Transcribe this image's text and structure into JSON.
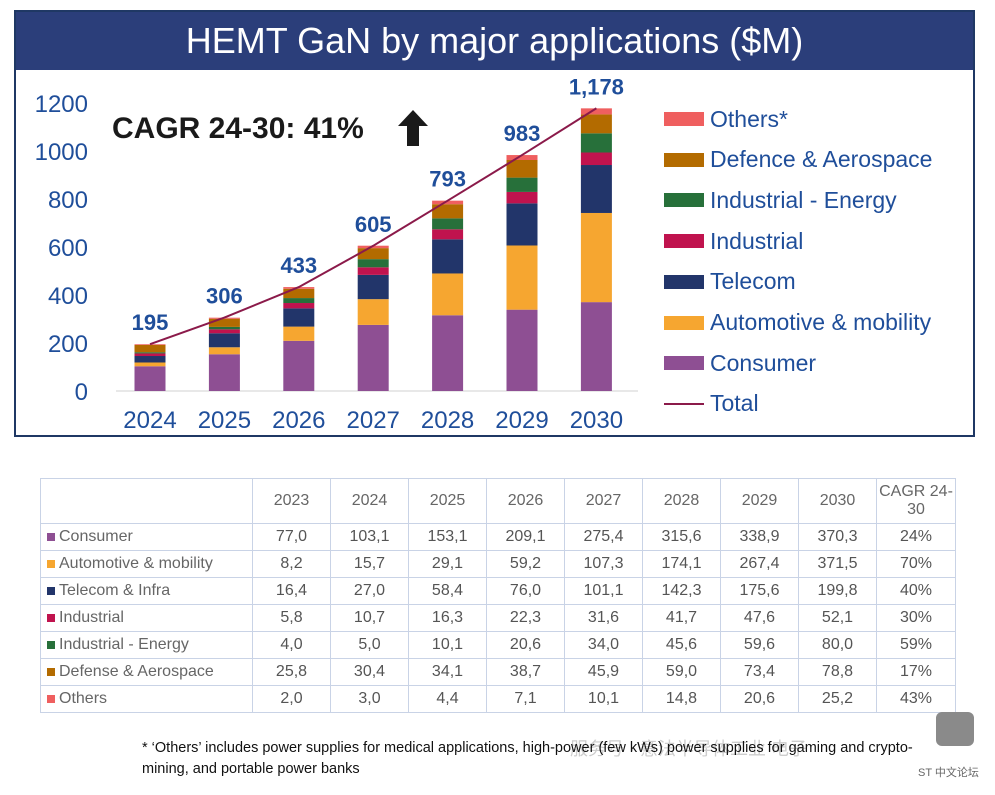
{
  "chart_data": {
    "type": "bar",
    "stacked": true,
    "title": "HEMT GaN by major applications ($M)",
    "categories": [
      "2024",
      "2025",
      "2026",
      "2027",
      "2028",
      "2029",
      "2030"
    ],
    "series": [
      {
        "name": "Consumer",
        "color": "#8e4f93",
        "values": [
          103.1,
          153.1,
          209.1,
          275.4,
          315.6,
          338.9,
          370.3
        ]
      },
      {
        "name": "Automotive & mobility",
        "color": "#f6a630",
        "values": [
          15.7,
          29.1,
          59.2,
          107.3,
          174.1,
          267.4,
          371.5
        ]
      },
      {
        "name": "Telecom",
        "color": "#22356a",
        "values": [
          27.0,
          58.4,
          76.0,
          101.1,
          142.3,
          175.6,
          199.8
        ]
      },
      {
        "name": "Industrial",
        "color": "#c0134e",
        "values": [
          10.7,
          16.3,
          22.3,
          31.6,
          41.7,
          47.6,
          52.1
        ]
      },
      {
        "name": "Industrial - Energy",
        "color": "#27703a",
        "values": [
          5.0,
          10.1,
          20.6,
          34.0,
          45.6,
          59.6,
          80.0
        ]
      },
      {
        "name": "Defence & Aerospace",
        "color": "#b36b00",
        "values": [
          30.4,
          34.1,
          38.7,
          45.9,
          59.0,
          73.4,
          78.8
        ]
      },
      {
        "name": "Others*",
        "color": "#ef5f5f",
        "values": [
          3.0,
          4.4,
          7.1,
          10.1,
          14.8,
          20.6,
          25.2
        ]
      }
    ],
    "total": {
      "name": "Total",
      "color": "#8b1a4a",
      "values": [
        195,
        306,
        433,
        605,
        793,
        983,
        1178
      ],
      "labels": [
        "195",
        "306",
        "433",
        "605",
        "793",
        "983",
        "1,178"
      ]
    },
    "ylim": [
      0,
      1200
    ],
    "yticks": [
      0,
      200,
      400,
      600,
      800,
      1000,
      1200
    ],
    "legend_position": "right",
    "grid": false
  },
  "cagr_text": "CAGR 24-30: 41%",
  "table": {
    "headers": [
      "2023",
      "2024",
      "2025",
      "2026",
      "2027",
      "2028",
      "2029",
      "2030",
      "CAGR 24-30"
    ],
    "rows": [
      {
        "label": "Consumer",
        "color": "#8e4f93",
        "values": [
          "77,0",
          "103,1",
          "153,1",
          "209,1",
          "275,4",
          "315,6",
          "338,9",
          "370,3",
          "24%"
        ]
      },
      {
        "label": "Automotive & mobility",
        "color": "#f6a630",
        "values": [
          "8,2",
          "15,7",
          "29,1",
          "59,2",
          "107,3",
          "174,1",
          "267,4",
          "371,5",
          "70%"
        ]
      },
      {
        "label": "Telecom & Infra",
        "color": "#22356a",
        "values": [
          "16,4",
          "27,0",
          "58,4",
          "76,0",
          "101,1",
          "142,3",
          "175,6",
          "199,8",
          "40%"
        ]
      },
      {
        "label": "Industrial",
        "color": "#c0134e",
        "values": [
          "5,8",
          "10,7",
          "16,3",
          "22,3",
          "31,6",
          "41,7",
          "47,6",
          "52,1",
          "30%"
        ]
      },
      {
        "label": "Industrial - Energy",
        "color": "#27703a",
        "values": [
          "4,0",
          "5,0",
          "10,1",
          "20,6",
          "34,0",
          "45,6",
          "59,6",
          "80,0",
          "59%"
        ]
      },
      {
        "label": "Defense & Aerospace",
        "color": "#b36b00",
        "values": [
          "25,8",
          "30,4",
          "34,1",
          "38,7",
          "45,9",
          "59,0",
          "73,4",
          "78,8",
          "17%"
        ]
      },
      {
        "label": "Others",
        "color": "#ef5f5f",
        "values": [
          "2,0",
          "3,0",
          "4,4",
          "7,1",
          "10,1",
          "14,8",
          "20,6",
          "25,2",
          "43%"
        ]
      }
    ]
  },
  "footnote": "* ‘Others’ includes power supplies for medical applications, high-power (few kWs) power supplies for gaming and crypto-mining, and portable power banks",
  "watermark": "服务号 · 意法半导体工业 电子",
  "corner_text": "ST 中文论坛"
}
